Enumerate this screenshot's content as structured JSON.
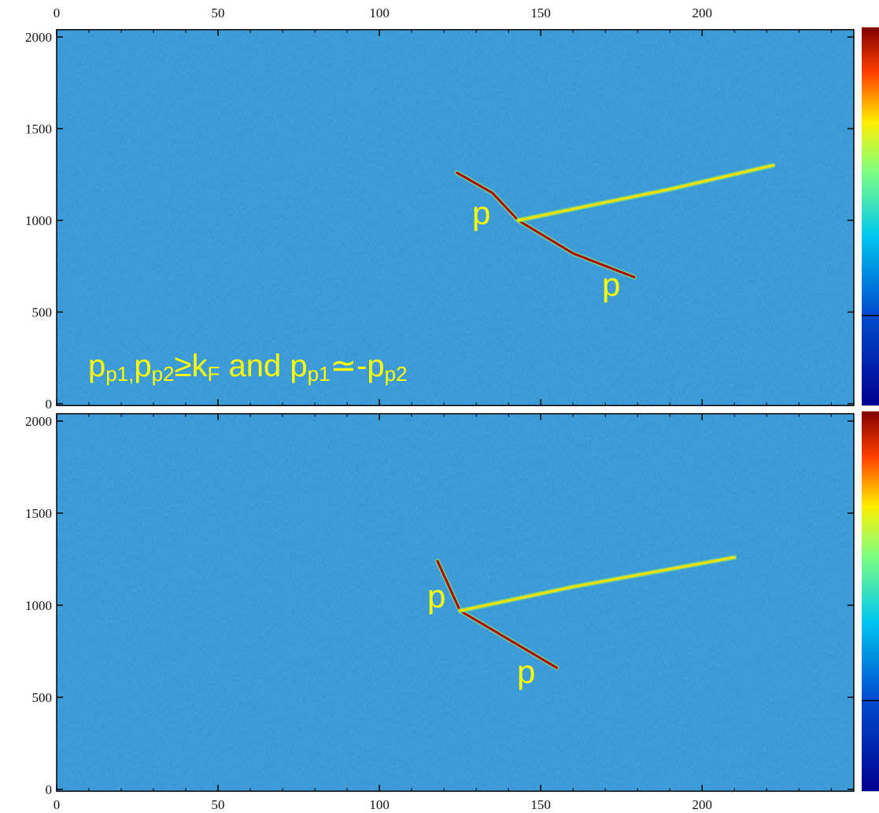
{
  "panels": [
    {
      "xlim": [
        0,
        247
      ],
      "ylim": [
        -10,
        2040
      ],
      "xticks": [
        0,
        50,
        100,
        150,
        200
      ],
      "yticks": [
        0,
        500,
        1000,
        1500,
        2000
      ],
      "tracks": [
        [
          [
            124,
            1260
          ],
          [
            135,
            1150
          ],
          [
            143,
            1000
          ],
          [
            160,
            820
          ],
          [
            179,
            690
          ]
        ],
        [
          [
            143,
            1000
          ],
          [
            165,
            1080
          ],
          [
            190,
            1170
          ],
          [
            222,
            1300
          ]
        ]
      ],
      "labels": [
        "p",
        "p"
      ],
      "annotation": [
        "p",
        "p1,",
        "p",
        "p2",
        "≥k",
        "F",
        " and p",
        "p1",
        "≃-p",
        "p2"
      ]
    },
    {
      "xlim": [
        0,
        247
      ],
      "ylim": [
        -10,
        2040
      ],
      "xticks": [
        0,
        50,
        100,
        150,
        200
      ],
      "yticks": [
        0,
        500,
        1000,
        1500,
        2000
      ],
      "tracks": [
        [
          [
            118,
            1240
          ],
          [
            125,
            970
          ],
          [
            155,
            660
          ]
        ],
        [
          [
            125,
            970
          ],
          [
            160,
            1100
          ],
          [
            210,
            1260
          ]
        ]
      ],
      "labels": [
        "p",
        "p"
      ]
    }
  ]
}
